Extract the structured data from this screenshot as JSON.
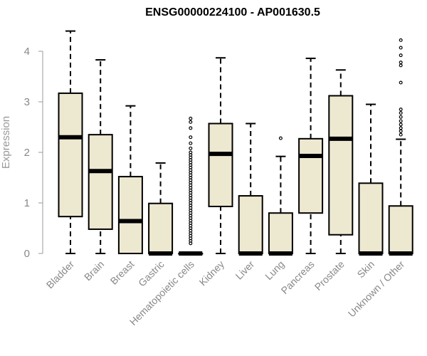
{
  "chart_data": {
    "type": "boxplot",
    "title": "ENSG00000224100 - AP001630.5",
    "ylabel": "Expression",
    "xlabel": "",
    "ylim": [
      0,
      4.4
    ],
    "yticks": [
      0,
      1,
      2,
      3,
      4
    ],
    "box_color": "#EDE8D0",
    "categories": [
      "Bladder",
      "Brain",
      "Breast",
      "Gastric",
      "Hematopoietic cells",
      "Kidney",
      "Liver",
      "Lung",
      "Pancreas",
      "Prostate",
      "Skin",
      "Unknown / Other"
    ],
    "boxes": [
      {
        "min": 0,
        "q1": 0.73,
        "median": 2.3,
        "q3": 3.17,
        "max": 4.4,
        "outliers": []
      },
      {
        "min": 0,
        "q1": 0.48,
        "median": 1.63,
        "q3": 2.35,
        "max": 3.83,
        "outliers": []
      },
      {
        "min": 0,
        "q1": 0,
        "median": 0.64,
        "q3": 1.52,
        "max": 2.92,
        "outliers": []
      },
      {
        "min": 0,
        "q1": 0,
        "median": 0,
        "q3": 0.99,
        "max": 1.79,
        "outliers": []
      },
      {
        "min": 0,
        "q1": 0,
        "median": 0,
        "q3": 0,
        "max": 0,
        "outliers": [
          0.2,
          0.25,
          0.3,
          0.35,
          0.4,
          0.45,
          0.5,
          0.55,
          0.6,
          0.65,
          0.7,
          0.75,
          0.8,
          0.85,
          0.9,
          0.95,
          1.0,
          1.05,
          1.1,
          1.15,
          1.2,
          1.25,
          1.3,
          1.35,
          1.4,
          1.45,
          1.5,
          1.55,
          1.6,
          1.65,
          1.7,
          1.75,
          1.8,
          1.85,
          1.9,
          1.95,
          2.0,
          2.08,
          2.18,
          2.3,
          2.48,
          2.6,
          2.67
        ]
      },
      {
        "min": 0,
        "q1": 0.93,
        "median": 1.97,
        "q3": 2.57,
        "max": 3.87,
        "outliers": []
      },
      {
        "min": 0,
        "q1": 0,
        "median": 0,
        "q3": 1.14,
        "max": 2.57,
        "outliers": []
      },
      {
        "min": 0,
        "q1": 0,
        "median": 0,
        "q3": 0.8,
        "max": 1.92,
        "outliers": [
          2.28
        ]
      },
      {
        "min": 0,
        "q1": 0.8,
        "median": 1.93,
        "q3": 2.27,
        "max": 3.86,
        "outliers": []
      },
      {
        "min": 0,
        "q1": 0.37,
        "median": 2.27,
        "q3": 3.12,
        "max": 3.63,
        "outliers": []
      },
      {
        "min": 0,
        "q1": 0,
        "median": 0,
        "q3": 1.39,
        "max": 2.95,
        "outliers": []
      },
      {
        "min": 0,
        "q1": 0,
        "median": 0,
        "q3": 0.94,
        "max": 2.26,
        "outliers": [
          2.35,
          2.42,
          2.48,
          2.55,
          2.62,
          2.7,
          2.78,
          2.85,
          3.38,
          3.72,
          3.78,
          3.92,
          4.07,
          4.22
        ]
      }
    ]
  }
}
